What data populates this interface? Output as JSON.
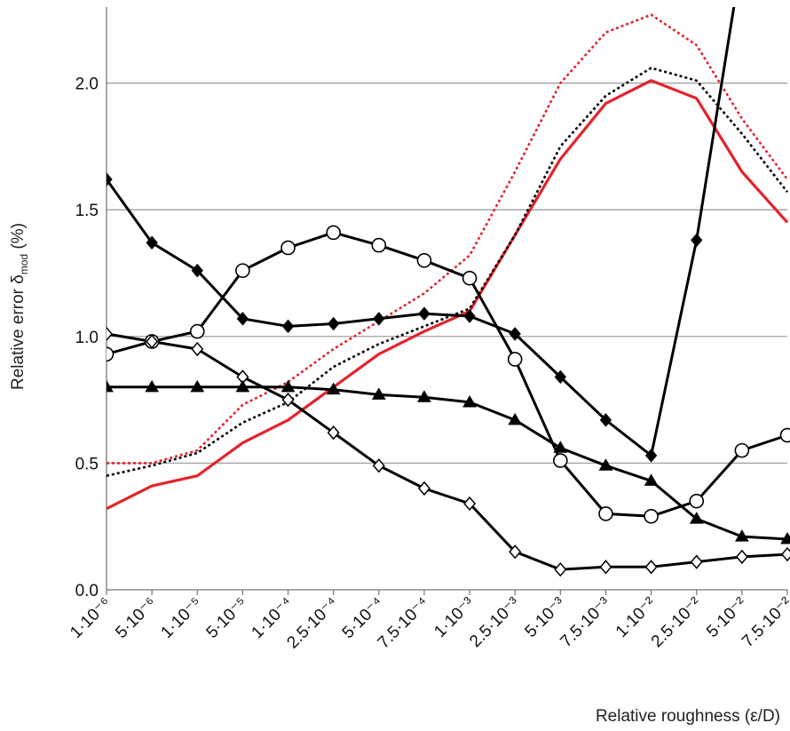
{
  "chart_data": {
    "type": "line",
    "title": "",
    "xlabel": "Relative roughness (ε/D)",
    "ylabel": {
      "prefix": "Relative error δ",
      "subscript": "mod",
      "suffix": " (%)"
    },
    "x": [
      "1·10⁻⁶",
      "5·10⁻⁶",
      "1·10⁻⁵",
      "5·10⁻⁵",
      "1·10⁻⁴",
      "2.5·10⁻⁴",
      "5·10⁻⁴",
      "7.5·10⁻⁴",
      "1·10⁻³",
      "2.5·10⁻³",
      "5·10⁻³",
      "7.5·10⁻³",
      "1·10⁻²",
      "2.5·10⁻²",
      "5·10⁻²",
      "7.5·10⁻²"
    ],
    "ylim": [
      0.0,
      2.3
    ],
    "yticks": [
      "0.0",
      "0.5",
      "1.0",
      "1.5",
      "2.0"
    ],
    "yticks_values": [
      0.0,
      0.5,
      1.0,
      1.5,
      2.0
    ],
    "grid": true,
    "series": [
      {
        "marker": "diamond-filled",
        "line": "solid",
        "color": "#000000",
        "values": [
          1.62,
          1.37,
          1.26,
          1.07,
          1.04,
          1.05,
          1.07,
          1.09,
          1.08,
          1.01,
          0.84,
          0.67,
          0.53,
          1.38,
          2.5,
          null
        ]
      },
      {
        "marker": "circle-open",
        "line": "solid",
        "color": "#000000",
        "values": [
          0.93,
          0.98,
          1.02,
          1.26,
          1.35,
          1.41,
          1.36,
          1.3,
          1.23,
          0.91,
          0.51,
          0.3,
          0.29,
          0.35,
          0.55,
          0.61
        ]
      },
      {
        "marker": "diamond-open",
        "line": "solid",
        "color": "#000000",
        "values": [
          1.01,
          0.98,
          0.95,
          0.84,
          0.75,
          0.62,
          0.49,
          0.4,
          0.34,
          0.15,
          0.08,
          0.09,
          0.09,
          0.11,
          0.13,
          0.14
        ]
      },
      {
        "marker": "triangle-filled",
        "line": "solid",
        "color": "#000000",
        "values": [
          0.8,
          0.8,
          0.8,
          0.8,
          0.8,
          0.79,
          0.77,
          0.76,
          0.74,
          0.67,
          0.56,
          0.49,
          0.43,
          0.28,
          0.21,
          0.2
        ]
      },
      {
        "marker": "none",
        "line": "solid",
        "color": "#e3242b",
        "values": [
          0.32,
          0.41,
          0.45,
          0.58,
          0.67,
          0.8,
          0.93,
          1.02,
          1.1,
          1.4,
          1.7,
          1.92,
          2.01,
          1.94,
          1.65,
          1.45
        ]
      },
      {
        "marker": "none",
        "line": "dotted",
        "color": "#000000",
        "values": [
          0.45,
          0.49,
          0.54,
          0.66,
          0.74,
          0.88,
          0.97,
          1.04,
          1.11,
          1.4,
          1.75,
          1.95,
          2.06,
          2.01,
          1.8,
          1.57
        ]
      },
      {
        "marker": "none",
        "line": "dotted",
        "color": "#e3242b",
        "values": [
          0.5,
          0.5,
          0.55,
          0.73,
          0.82,
          0.95,
          1.06,
          1.17,
          1.32,
          1.65,
          2.0,
          2.2,
          2.27,
          2.15,
          1.86,
          1.62
        ]
      }
    ]
  }
}
